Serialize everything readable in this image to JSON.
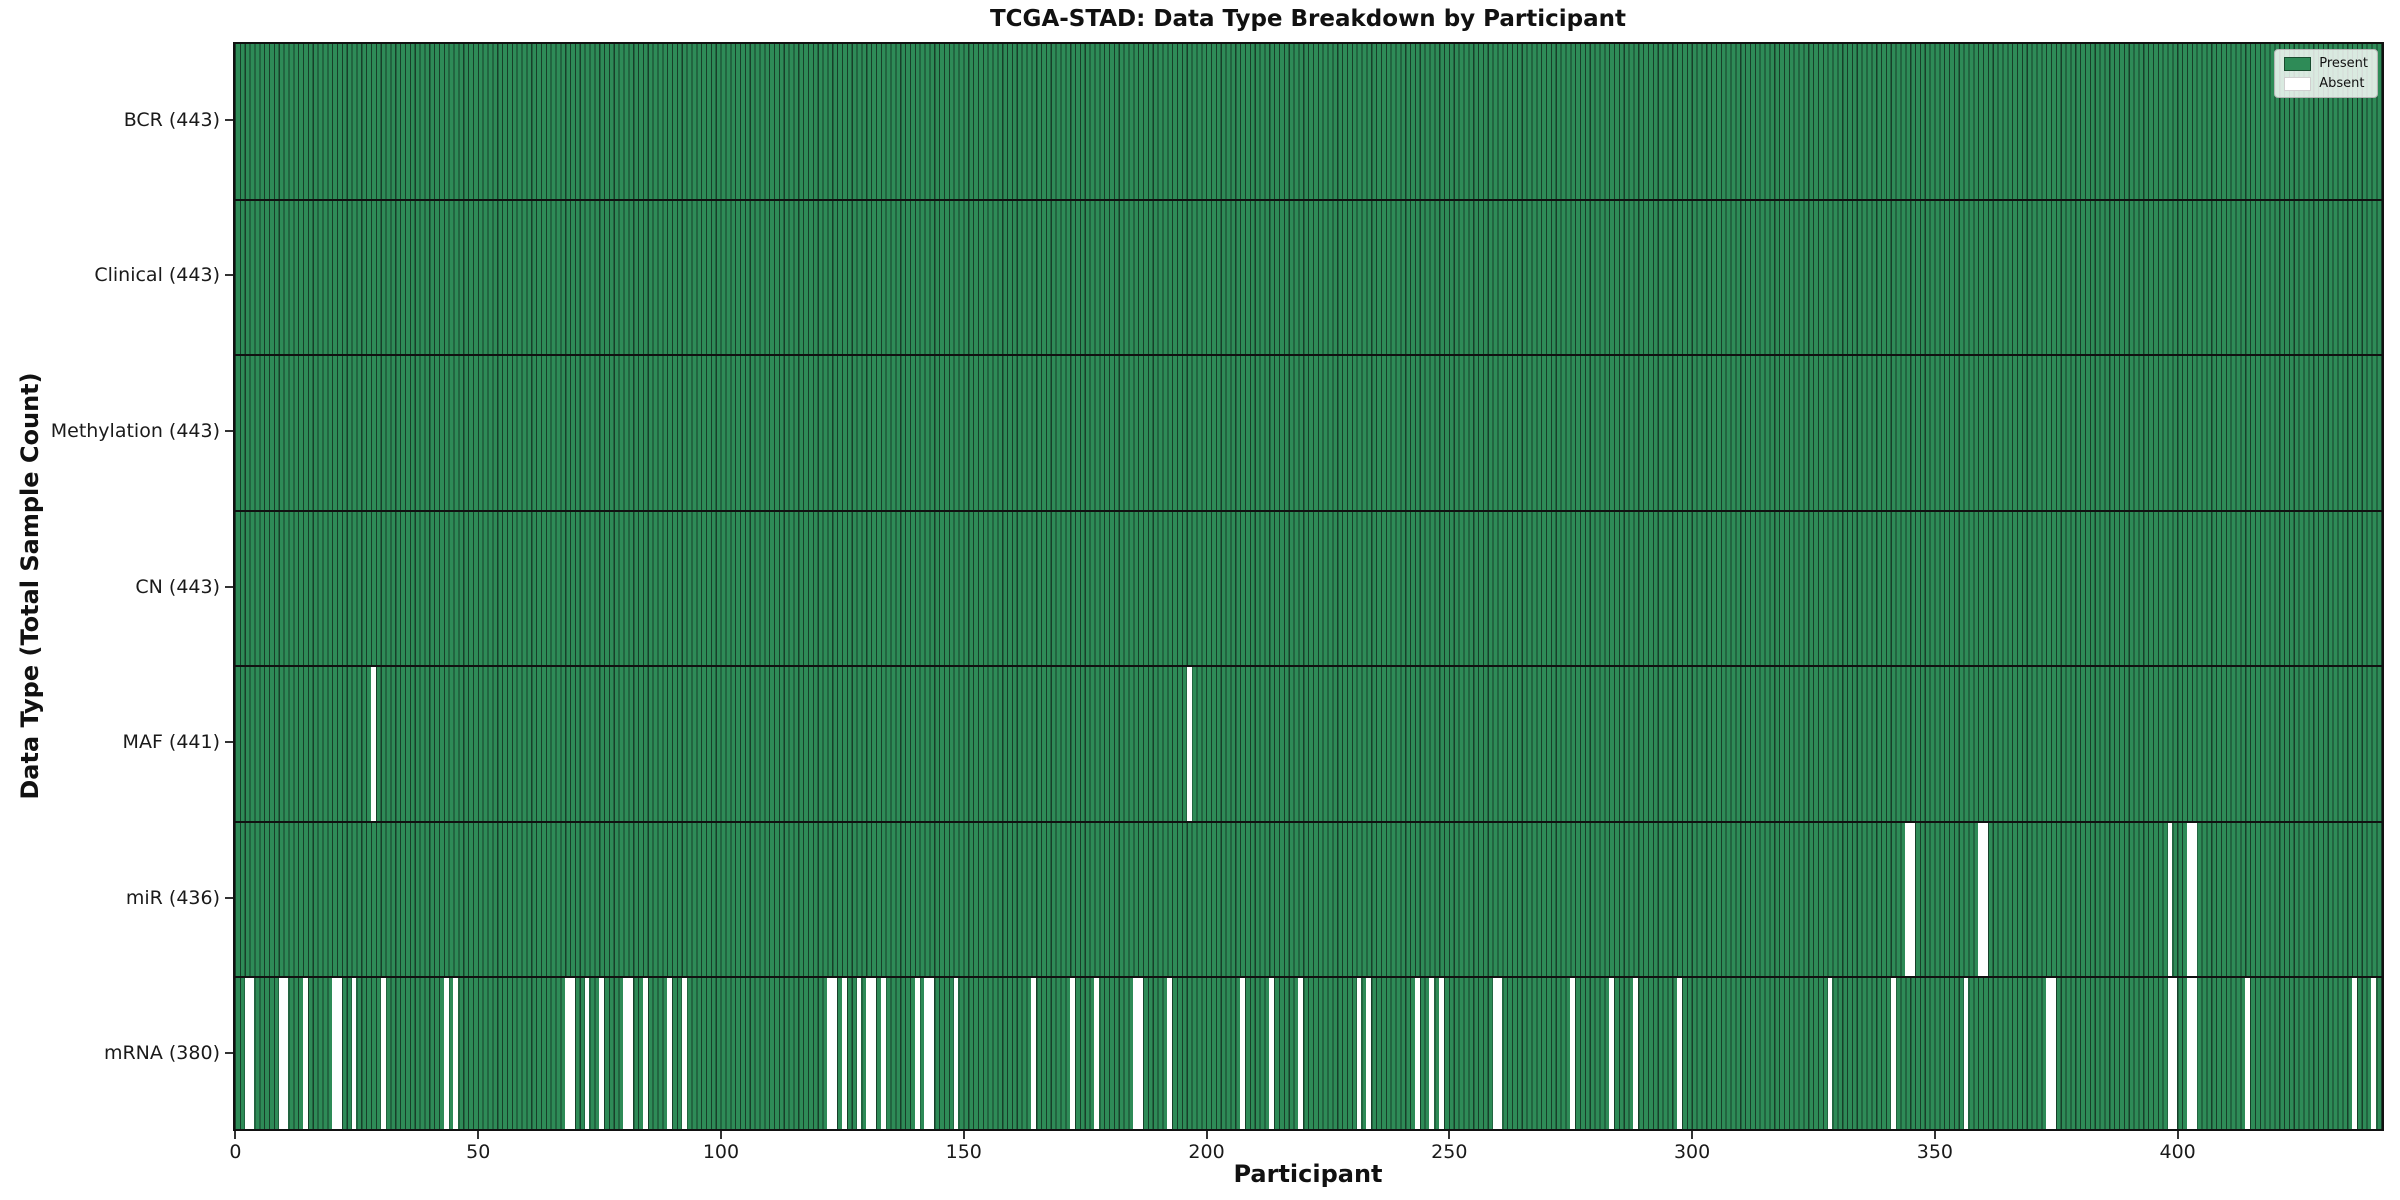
{
  "chart_data": {
    "type": "heatmap",
    "title": "TCGA-STAD: Data Type Breakdown by Participant",
    "xlabel": "Participant",
    "ylabel": "Data Type (Total Sample Count)",
    "total_participants": 443,
    "x_ticks": [
      0,
      50,
      100,
      150,
      200,
      250,
      300,
      350,
      400
    ],
    "legend": [
      {
        "label": "Present",
        "color": "#2e8b57"
      },
      {
        "label": "Absent",
        "color": "#ffffff"
      }
    ],
    "colors": {
      "present": "#2e8b57",
      "bar_edge": "#173f29",
      "absent": "#ffffff",
      "separator": "#111111"
    },
    "rows": [
      {
        "name": "bcr",
        "label": "BCR (443)",
        "present_count": 443,
        "absent_participants": []
      },
      {
        "name": "clinical",
        "label": "Clinical (443)",
        "present_count": 443,
        "absent_participants": []
      },
      {
        "name": "methylation",
        "label": "Methylation (443)",
        "present_count": 443,
        "absent_participants": []
      },
      {
        "name": "cn",
        "label": "CN (443)",
        "present_count": 443,
        "absent_participants": []
      },
      {
        "name": "maf",
        "label": "MAF (441)",
        "present_count": 441,
        "absent_participants": [
          28,
          196
        ]
      },
      {
        "name": "mir",
        "label": "miR (436)",
        "present_count": 436,
        "absent_participants": [
          344,
          345,
          359,
          360,
          398,
          402,
          403
        ]
      },
      {
        "name": "mrna",
        "label": "mRNA (380)",
        "present_count": 380,
        "absent_participants": [
          2,
          3,
          9,
          10,
          14,
          20,
          21,
          24,
          30,
          43,
          45,
          68,
          69,
          72,
          75,
          80,
          81,
          84,
          89,
          92,
          122,
          123,
          125,
          128,
          130,
          131,
          133,
          140,
          142,
          143,
          148,
          164,
          172,
          177,
          185,
          186,
          192,
          207,
          213,
          219,
          231,
          233,
          243,
          246,
          248,
          259,
          260,
          275,
          283,
          288,
          297,
          328,
          341,
          356,
          373,
          374,
          398,
          399,
          402,
          403,
          414,
          436,
          440
        ]
      }
    ]
  }
}
